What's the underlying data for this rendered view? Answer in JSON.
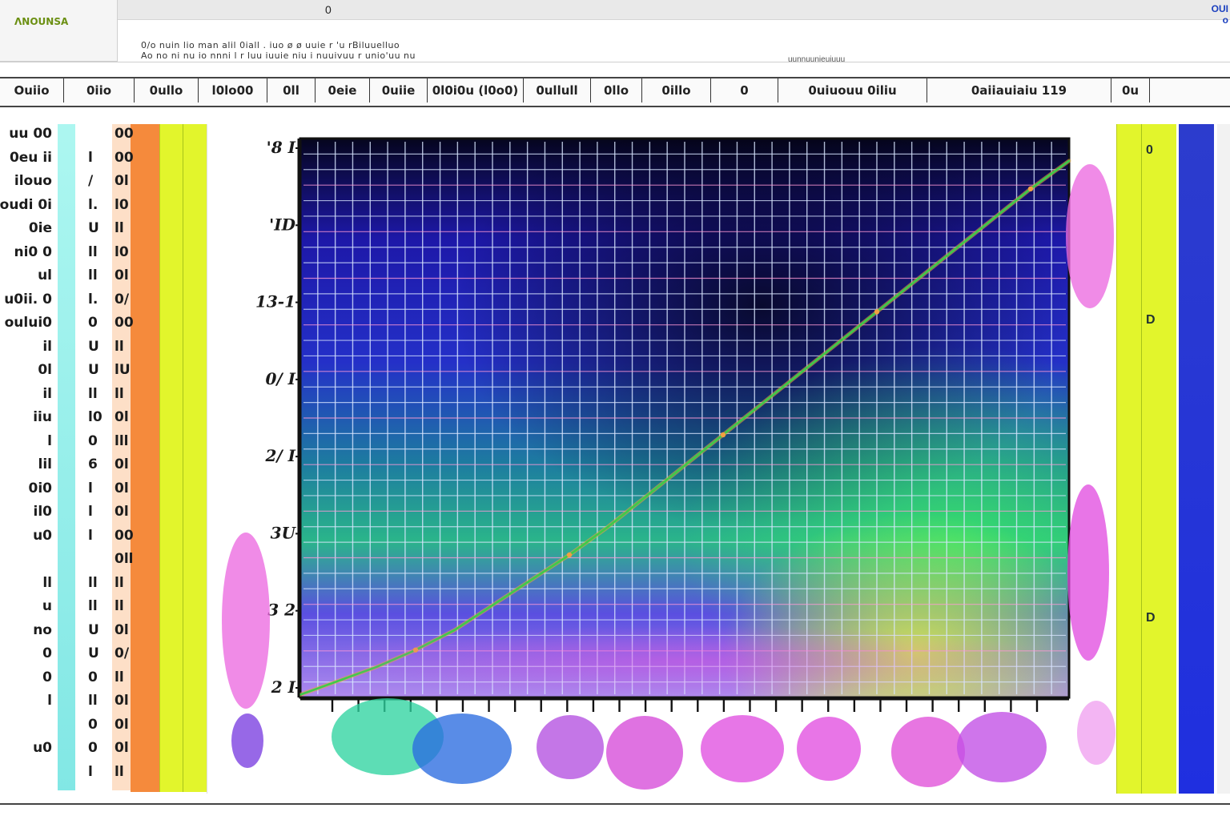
{
  "toolbar": {
    "logo_label": "ɅNOUNSA",
    "top_center": "0",
    "top_right_1": "OUI",
    "top_right_2": "o"
  },
  "description": {
    "line1": "0/o nuin lio man alil 0iall . iuo ø ø uuie r 'u rBiluuelluo",
    "line2": "Ao no ni nu io nnni l r luu iuuie niu i nuuivuu r unio'uu nu",
    "sub": "uunnuunieuiuuu"
  },
  "columns": [
    "Ouiio",
    "0iio",
    "0ullo",
    "l0lo00",
    "0ll",
    "0eie",
    "0uiie",
    "0l0i0u (l0o0)",
    "0ullull",
    "0llo",
    "0illo",
    "0",
    "0uiuouu 0iliu",
    "0aiiauiaiu   119",
    "0u"
  ],
  "left_rows": [
    {
      "a": "uu 00",
      "b": "",
      "c": "00"
    },
    {
      "a": "0eu ii",
      "b": "l",
      "c": "00"
    },
    {
      "a": "ilouo",
      "b": "/",
      "c": "0l"
    },
    {
      "a": "oudi 0i",
      "b": "l.",
      "c": "l0"
    },
    {
      "a": "0ie",
      "b": "U",
      "c": "ll"
    },
    {
      "a": "ni0 0",
      "b": "ll",
      "c": "l0"
    },
    {
      "a": "ul",
      "b": "ll",
      "c": "0l"
    },
    {
      "a": "u0ii. 0",
      "b": "l.",
      "c": "0/"
    },
    {
      "a": "oului0",
      "b": "0",
      "c": "00"
    },
    {
      "a": "il",
      "b": "U",
      "c": "ll"
    },
    {
      "a": "0l",
      "b": "U",
      "c": "lU"
    },
    {
      "a": "il",
      "b": "ll",
      "c": "ll"
    },
    {
      "a": "iiu",
      "b": "l0",
      "c": "0l"
    },
    {
      "a": "l",
      "b": "0",
      "c": "lll"
    },
    {
      "a": "lil",
      "b": "6",
      "c": "0l"
    },
    {
      "a": "0i0",
      "b": "l",
      "c": "0l"
    },
    {
      "a": "il0",
      "b": "l",
      "c": "0l"
    },
    {
      "a": "u0",
      "b": "l",
      "c": "00"
    },
    {
      "a": "",
      "b": "",
      "c": "0ll"
    },
    {
      "a": "ll",
      "b": "ll",
      "c": "ll"
    },
    {
      "a": "u",
      "b": "ll",
      "c": "ll"
    },
    {
      "a": "no",
      "b": "U",
      "c": "0l"
    },
    {
      "a": "0",
      "b": "U",
      "c": "0/"
    },
    {
      "a": "0",
      "b": "0",
      "c": "ll"
    },
    {
      "a": "l",
      "b": "ll",
      "c": "0l"
    },
    {
      "a": "",
      "b": "0",
      "c": "0l"
    },
    {
      "a": "u0",
      "b": "0",
      "c": "0l"
    },
    {
      "a": "",
      "b": "l",
      "c": "ll"
    }
  ],
  "right_marks": [
    "0",
    "D",
    "D"
  ],
  "colors": {
    "orange": "#f58a3c",
    "yellow": "#e2f52c",
    "blue": "#1f2fe0",
    "plot_bg_top": "#06062a",
    "plot_bg_mid": "#2a2ad8",
    "plot_bg_low": "#1ec98a",
    "grid": "#d8e6ff",
    "line_main": "#3ecb4a",
    "line_accent": "#f0a040",
    "splash": "#e24ee0"
  },
  "chart_data": {
    "type": "line",
    "title": "",
    "xlabel": "",
    "ylabel": "",
    "y_tick_labels": [
      "'8 I",
      "'ID",
      "13-1",
      "0/ I",
      "2/ I",
      "3U",
      "3 2",
      "2 I"
    ],
    "x_ticks_count": 28,
    "ylim": [
      0,
      100
    ],
    "xlim": [
      0,
      100
    ],
    "grid": true,
    "series": [
      {
        "x": [
          0,
          5,
          10,
          15,
          20,
          25,
          30,
          35,
          40,
          45,
          50,
          55,
          60,
          65,
          70,
          75,
          80,
          85,
          90,
          95,
          100
        ],
        "y": [
          0.5,
          3,
          5.5,
          8.5,
          12,
          16.5,
          21,
          25.5,
          30.5,
          36,
          41.5,
          47,
          52.5,
          58,
          63.5,
          69,
          74.5,
          80,
          85.5,
          91,
          96
        ]
      }
    ]
  }
}
